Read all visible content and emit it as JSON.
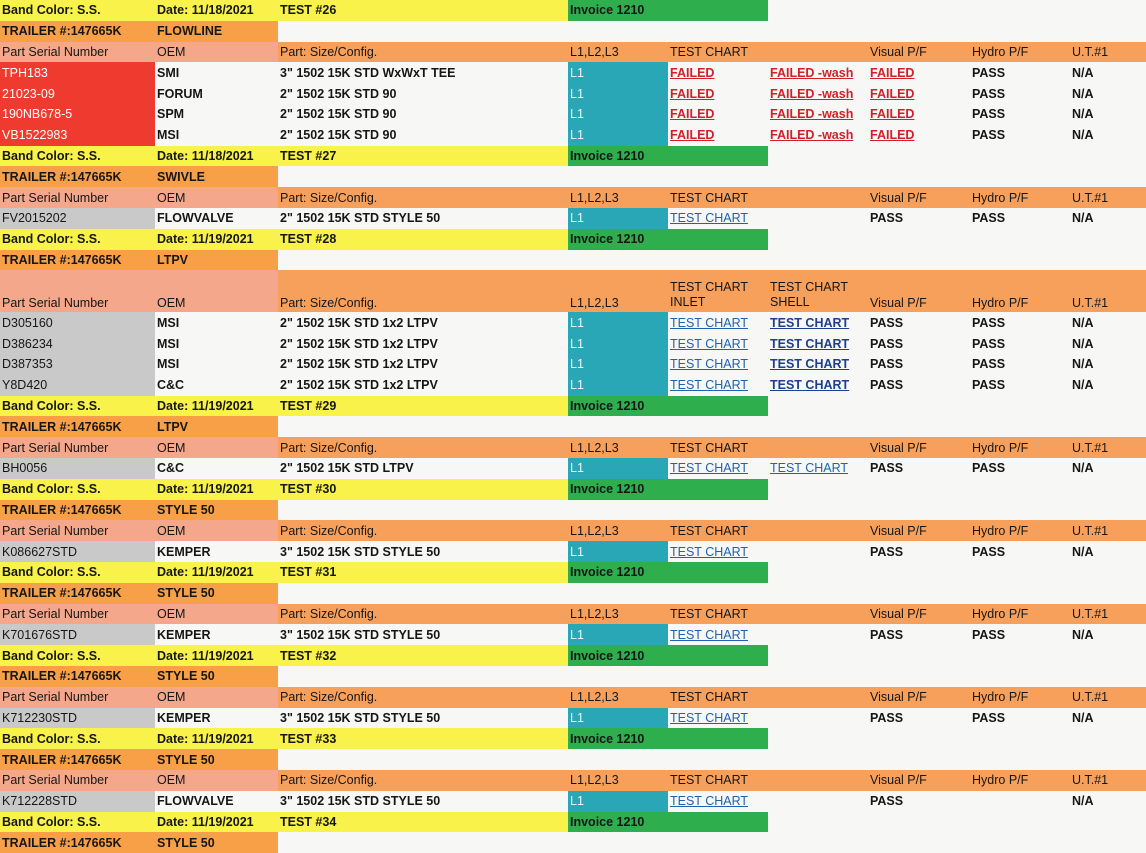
{
  "colors": {
    "header_orange": "#f7a05c",
    "serial_salmon": "#f4a78a",
    "band_yellow": "#f8f24a",
    "trailer_orange": "#f8a047",
    "invoice_green": "#2fae4e",
    "level_teal": "#2aa7b7",
    "serial_red": "#ee3a2f",
    "serial_gray": "#c9c9c9",
    "link_blue": "#1f62b0",
    "failed_red": "#d11f2a"
  },
  "rows": [
    {
      "type": "band",
      "band": "Band Color: S.S.",
      "date": "Date: 11/18/2021",
      "test": "TEST #26",
      "invoice": "Invoice 1210"
    },
    {
      "type": "trailer",
      "trailer": "TRAILER #:147665K",
      "category": "FLOWLINE"
    },
    {
      "type": "header",
      "serial": "Part Serial Number",
      "oem": "OEM",
      "part": "Part: Size/Config.",
      "level": "L1,L2,L3",
      "chart": "TEST CHART",
      "chart2": "",
      "visual": "Visual P/F",
      "hydro": "Hydro P/F",
      "ut": "U.T.#1"
    },
    {
      "type": "data",
      "serial_style": "red",
      "serial": "TPH183",
      "oem": "SMI",
      "part": "3\" 1502 15K STD WxWxT TEE",
      "level": "L1",
      "chart": "FAILED",
      "chart_style": "fail",
      "chart2": "FAILED -wash",
      "chart2_style": "fail",
      "visual": "FAILED",
      "visual_style": "fail",
      "hydro": "PASS",
      "ut": "N/A"
    },
    {
      "type": "data",
      "serial_style": "red",
      "serial": "21023-09",
      "oem": "FORUM",
      "part": "2\" 1502 15K STD 90",
      "level": "L1",
      "chart": "FAILED",
      "chart_style": "fail",
      "chart2": "FAILED -wash",
      "chart2_style": "fail",
      "visual": "FAILED",
      "visual_style": "fail",
      "hydro": "PASS",
      "ut": "N/A"
    },
    {
      "type": "data",
      "serial_style": "red",
      "serial": "190NB678-5",
      "oem": "SPM",
      "part": "2\" 1502 15K STD 90",
      "level": "L1",
      "chart": "FAILED",
      "chart_style": "fail",
      "chart2": "FAILED -wash",
      "chart2_style": "fail",
      "visual": "FAILED",
      "visual_style": "fail",
      "hydro": "PASS",
      "ut": "N/A"
    },
    {
      "type": "data",
      "serial_style": "red",
      "serial": "VB1522983",
      "oem": "MSI",
      "part": "2\" 1502 15K STD 90",
      "level": "L1",
      "chart": "FAILED",
      "chart_style": "fail",
      "chart2": "FAILED -wash",
      "chart2_style": "fail",
      "visual": "FAILED",
      "visual_style": "fail",
      "hydro": "PASS",
      "ut": "N/A"
    },
    {
      "type": "band",
      "band": "Band Color: S.S.",
      "date": "Date: 11/18/2021",
      "test": "TEST #27",
      "invoice": "Invoice 1210"
    },
    {
      "type": "trailer",
      "trailer": "TRAILER #:147665K",
      "category": "SWIVLE"
    },
    {
      "type": "header",
      "serial": "Part Serial Number",
      "oem": "OEM",
      "part": "Part: Size/Config.",
      "level": "L1,L2,L3",
      "chart": "TEST CHART",
      "chart2": "",
      "visual": "Visual P/F",
      "hydro": "Hydro P/F",
      "ut": "U.T.#1"
    },
    {
      "type": "data",
      "serial_style": "gray",
      "serial": "FV2015202",
      "oem": "FLOWVALVE",
      "part": "2\" 1502 15K STD STYLE 50",
      "level": "L1",
      "chart": "TEST CHART",
      "chart_style": "link",
      "chart2": "",
      "chart2_style": "",
      "visual": "PASS",
      "visual_style": "",
      "hydro": "PASS",
      "ut": "N/A"
    },
    {
      "type": "band",
      "band": "Band Color: S.S.",
      "date": "Date: 11/19/2021",
      "test": "TEST #28",
      "invoice": "Invoice 1210"
    },
    {
      "type": "trailer",
      "trailer": "TRAILER #:147665K",
      "category": "LTPV"
    },
    {
      "type": "header",
      "tall": true,
      "serial": "Part Serial Number",
      "oem": "OEM",
      "part": "Part: Size/Config.",
      "level": "L1,L2,L3",
      "chart": "TEST CHART INLET",
      "chart_lines": [
        "TEST CHART",
        "INLET"
      ],
      "chart2": "TEST CHART SHELL",
      "chart2_lines": [
        "TEST CHART",
        "SHELL"
      ],
      "visual": "Visual P/F",
      "hydro": "Hydro P/F",
      "ut": "U.T.#1"
    },
    {
      "type": "data",
      "serial_style": "gray",
      "serial": "D305160",
      "oem": "MSI",
      "part": "2\" 1502 15K STD  1x2 LTPV",
      "level": "L1",
      "chart": "TEST CHART",
      "chart_style": "link",
      "chart2": "TEST CHART",
      "chart2_style": "link2",
      "visual": "PASS",
      "visual_style": "",
      "hydro": "PASS",
      "ut": "N/A"
    },
    {
      "type": "data",
      "serial_style": "gray",
      "serial": "D386234",
      "oem": "MSI",
      "part": "2\" 1502 15K STD  1x2 LTPV",
      "level": "L1",
      "chart": "TEST CHART",
      "chart_style": "link",
      "chart2": "TEST CHART",
      "chart2_style": "link2",
      "visual": "PASS",
      "visual_style": "",
      "hydro": "PASS",
      "ut": "N/A"
    },
    {
      "type": "data",
      "serial_style": "gray",
      "serial": "D387353",
      "oem": "MSI",
      "part": "2\" 1502 15K STD  1x2 LTPV",
      "level": "L1",
      "chart": "TEST CHART",
      "chart_style": "link",
      "chart2": "TEST CHART",
      "chart2_style": "link2",
      "visual": "PASS",
      "visual_style": "",
      "hydro": "PASS",
      "ut": "N/A"
    },
    {
      "type": "data",
      "serial_style": "gray",
      "serial": "Y8D420",
      "oem": "C&C",
      "part": "2\" 1502 15K STD  1x2 LTPV",
      "level": "L1",
      "chart": "TEST CHART",
      "chart_style": "link",
      "chart2": "TEST CHART",
      "chart2_style": "link2",
      "visual": "PASS",
      "visual_style": "",
      "hydro": "PASS",
      "ut": "N/A"
    },
    {
      "type": "band",
      "band": "Band Color: S.S.",
      "date": "Date: 11/19/2021",
      "test": "TEST #29",
      "invoice": "Invoice 1210"
    },
    {
      "type": "trailer",
      "trailer": "TRAILER #:147665K",
      "category": "LTPV"
    },
    {
      "type": "header",
      "serial": "Part Serial Number",
      "oem": "OEM",
      "part": "Part: Size/Config.",
      "level": "L1,L2,L3",
      "chart": "TEST CHART",
      "chart2": "",
      "visual": "Visual P/F",
      "hydro": "Hydro P/F",
      "ut": "U.T.#1"
    },
    {
      "type": "data",
      "serial_style": "gray",
      "serial": "BH0056",
      "oem": "C&C",
      "part": "2\" 1502 15K STD LTPV",
      "level": "L1",
      "chart": "TEST CHART",
      "chart_style": "link",
      "chart2": "TEST CHART",
      "chart2_style": "link",
      "visual": "PASS",
      "visual_style": "",
      "hydro": "PASS",
      "ut": "N/A"
    },
    {
      "type": "band",
      "band": "Band Color: S.S.",
      "date": "Date: 11/19/2021",
      "test": "TEST #30",
      "invoice": "Invoice 1210"
    },
    {
      "type": "trailer",
      "trailer": "TRAILER #:147665K",
      "category": "STYLE 50"
    },
    {
      "type": "header",
      "serial": "Part Serial Number",
      "oem": "OEM",
      "part": "Part: Size/Config.",
      "level": "L1,L2,L3",
      "chart": "TEST CHART",
      "chart2": "",
      "visual": "Visual P/F",
      "hydro": "Hydro P/F",
      "ut": "U.T.#1"
    },
    {
      "type": "data",
      "serial_style": "gray",
      "serial": "K086627STD",
      "oem": "KEMPER",
      "part": "3\" 1502 15K STD STYLE 50",
      "level": "L1",
      "chart": "TEST CHART",
      "chart_style": "link",
      "chart2": "",
      "chart2_style": "",
      "visual": "PASS",
      "visual_style": "",
      "hydro": "PASS",
      "ut": "N/A"
    },
    {
      "type": "band",
      "band": "Band Color: S.S.",
      "date": "Date: 11/19/2021",
      "test": "TEST #31",
      "invoice": "Invoice 1210"
    },
    {
      "type": "trailer",
      "trailer": "TRAILER #:147665K",
      "category": "STYLE 50"
    },
    {
      "type": "header",
      "serial": "Part Serial Number",
      "oem": "OEM",
      "part": "Part: Size/Config.",
      "level": "L1,L2,L3",
      "chart": "TEST CHART",
      "chart2": "",
      "visual": "Visual P/F",
      "hydro": "Hydro P/F",
      "ut": "U.T.#1"
    },
    {
      "type": "data",
      "serial_style": "gray",
      "serial": "K701676STD",
      "oem": "KEMPER",
      "part": "3\" 1502 15K STD STYLE 50",
      "level": "L1",
      "chart": "TEST CHART",
      "chart_style": "link",
      "chart2": "",
      "chart2_style": "",
      "visual": "PASS",
      "visual_style": "",
      "hydro": "PASS",
      "ut": "N/A"
    },
    {
      "type": "band",
      "band": "Band Color: S.S.",
      "date": "Date: 11/19/2021",
      "test": "TEST #32",
      "invoice": "Invoice 1210"
    },
    {
      "type": "trailer",
      "trailer": "TRAILER #:147665K",
      "category": "STYLE 50"
    },
    {
      "type": "header",
      "serial": "Part Serial Number",
      "oem": "OEM",
      "part": "Part: Size/Config.",
      "level": "L1,L2,L3",
      "chart": "TEST CHART",
      "chart2": "",
      "visual": "Visual P/F",
      "hydro": "Hydro P/F",
      "ut": "U.T.#1"
    },
    {
      "type": "data",
      "serial_style": "gray",
      "serial": "K712230STD",
      "oem": "KEMPER",
      "part": "3\" 1502 15K STD STYLE 50",
      "level": "L1",
      "chart": "TEST CHART",
      "chart_style": "link",
      "chart2": "",
      "chart2_style": "",
      "visual": "PASS",
      "visual_style": "",
      "hydro": "PASS",
      "ut": "N/A"
    },
    {
      "type": "band",
      "band": "Band Color: S.S.",
      "date": "Date: 11/19/2021",
      "test": "TEST #33",
      "invoice": "Invoice 1210"
    },
    {
      "type": "trailer",
      "trailer": "TRAILER #:147665K",
      "category": "STYLE 50"
    },
    {
      "type": "header",
      "serial": "Part Serial Number",
      "oem": "OEM",
      "part": "Part: Size/Config.",
      "level": "L1,L2,L3",
      "chart": "TEST CHART",
      "chart2": "",
      "visual": "Visual P/F",
      "hydro": "Hydro P/F",
      "ut": "U.T.#1"
    },
    {
      "type": "data",
      "serial_style": "gray",
      "serial": "K712228STD",
      "oem": "FLOWVALVE",
      "part": "3\" 1502 15K STD STYLE 50",
      "level": "L1",
      "chart": "TEST CHART",
      "chart_style": "link",
      "chart2": "",
      "chart2_style": "",
      "visual": "PASS",
      "visual_style": "",
      "hydro": "",
      "ut": "N/A"
    },
    {
      "type": "band",
      "band": "Band Color: S.S.",
      "date": "Date: 11/19/2021",
      "test": "TEST #34",
      "invoice": "Invoice 1210"
    },
    {
      "type": "trailer",
      "trailer": "TRAILER #:147665K",
      "category": "STYLE 50"
    }
  ]
}
